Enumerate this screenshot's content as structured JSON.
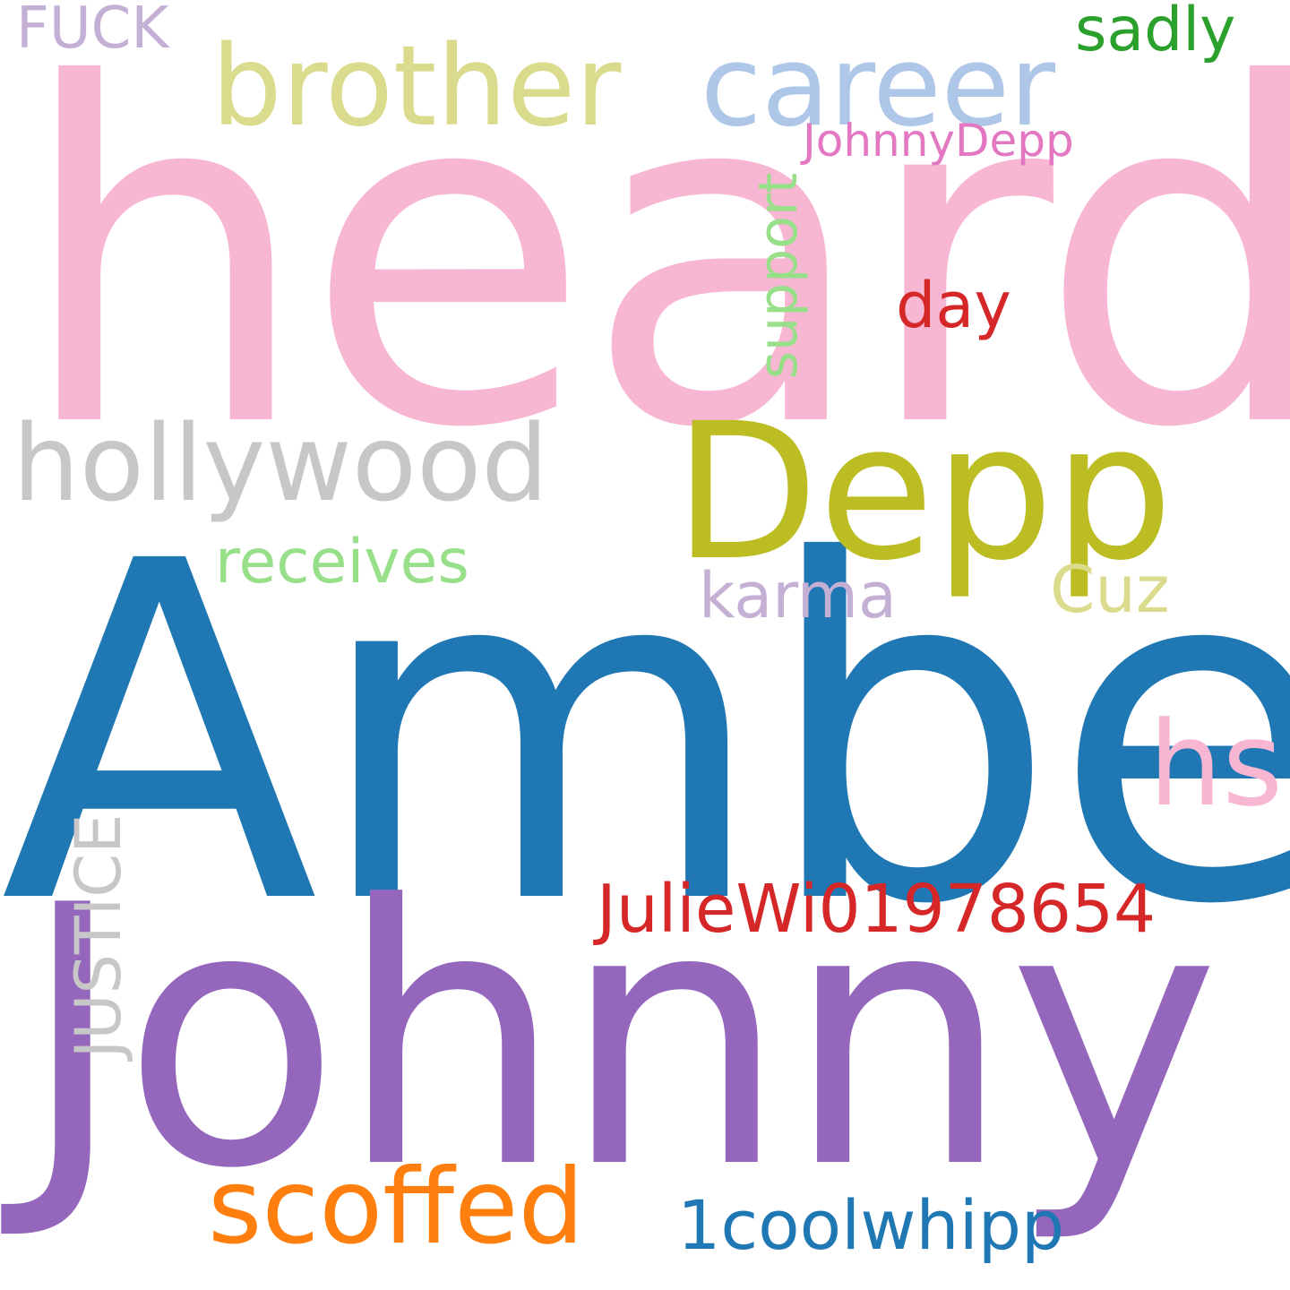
{
  "words": [
    {
      "text": "heard",
      "color": "#f7b6d2",
      "orientation": "horizontal"
    },
    {
      "text": "Amber",
      "color": "#1f77b4",
      "orientation": "horizontal"
    },
    {
      "text": "Johnny",
      "color": "#9467bd",
      "orientation": "horizontal"
    },
    {
      "text": "Depp",
      "color": "#bcbd22",
      "orientation": "horizontal"
    },
    {
      "text": "brother",
      "color": "#dbdb8d",
      "orientation": "horizontal"
    },
    {
      "text": "career",
      "color": "#aec7e8",
      "orientation": "horizontal"
    },
    {
      "text": "hollywood",
      "color": "#c7c7c7",
      "orientation": "horizontal"
    },
    {
      "text": "scoffed",
      "color": "#ff7f0e",
      "orientation": "horizontal"
    },
    {
      "text": "sadly",
      "color": "#2ca02c",
      "orientation": "horizontal"
    },
    {
      "text": "FUCK",
      "color": "#c5b0d5",
      "orientation": "horizontal"
    },
    {
      "text": "JohnnyDepp",
      "color": "#e377c2",
      "orientation": "horizontal"
    },
    {
      "text": "support",
      "color": "#98df8a",
      "orientation": "vertical"
    },
    {
      "text": "day",
      "color": "#d62728",
      "orientation": "horizontal"
    },
    {
      "text": "receives",
      "color": "#98df8a",
      "orientation": "horizontal"
    },
    {
      "text": "karma",
      "color": "#c5b0d5",
      "orientation": "horizontal"
    },
    {
      "text": "Cuz",
      "color": "#dbdb8d",
      "orientation": "horizontal"
    },
    {
      "text": "hs",
      "color": "#f7b6d2",
      "orientation": "horizontal"
    },
    {
      "text": "JulieWi01978654",
      "color": "#d62728",
      "orientation": "horizontal"
    },
    {
      "text": "JUSTICE",
      "color": "#c7c7c7",
      "orientation": "vertical"
    },
    {
      "text": "1coolwhipp",
      "color": "#1f77b4",
      "orientation": "horizontal"
    }
  ]
}
